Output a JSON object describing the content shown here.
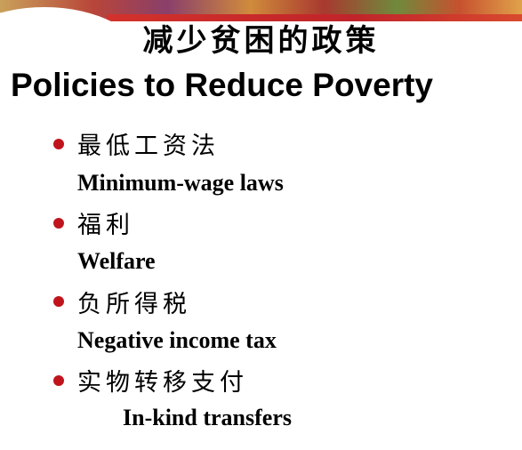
{
  "slide": {
    "title_zh": "减少贫困的政策",
    "title_en": "Policies to Reduce Poverty",
    "bullets": [
      {
        "zh": "最低工资法",
        "en": "Minimum-wage laws"
      },
      {
        "zh": "福利",
        "en": "Welfare"
      },
      {
        "zh": "负所得税",
        "en": "Negative income tax"
      },
      {
        "zh": "实物转移支付",
        "en": "In-kind transfers"
      }
    ]
  },
  "colors": {
    "bullet": "#c0141c",
    "banner_stripe": "#c0242a",
    "text": "#000000"
  }
}
